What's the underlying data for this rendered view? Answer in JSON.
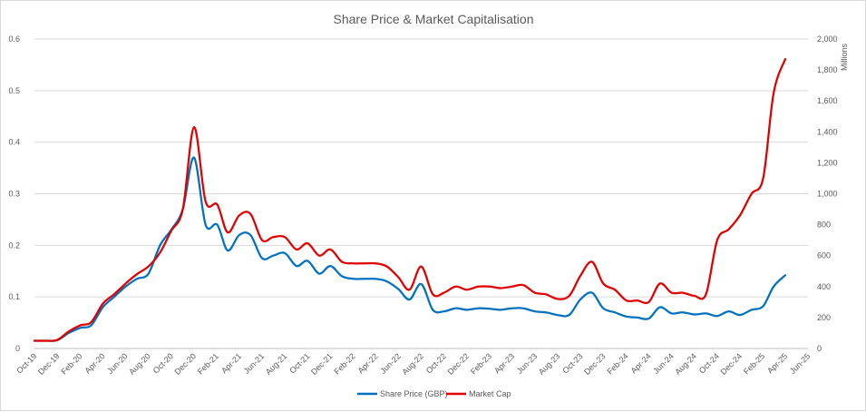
{
  "chart_data": {
    "type": "line",
    "title": "Share Price & Market Capitalisation",
    "y2_unit_label": "Millions",
    "x_tick_labels": [
      "Oct-19",
      "Dec-19",
      "Feb-20",
      "Apr-20",
      "Jun-20",
      "Aug-20",
      "Oct-20",
      "Dec-20",
      "Feb-21",
      "Apr-21",
      "Jun-21",
      "Aug-21",
      "Oct-21",
      "Dec-21",
      "Feb-22",
      "Apr-22",
      "Jun-22",
      "Aug-22",
      "Oct-22",
      "Dec-22",
      "Feb-23",
      "Apr-23",
      "Jun-23",
      "Aug-23",
      "Oct-23",
      "Dec-23",
      "Feb-24",
      "Apr-24",
      "Jun-24",
      "Aug-24",
      "Oct-24",
      "Dec-24",
      "Feb-25",
      "Apr-25",
      "Jun-25"
    ],
    "y_ticks": [
      "0",
      "0.1",
      "0.2",
      "0.3",
      "0.4",
      "0.5",
      "0.6"
    ],
    "y2_ticks": [
      "0",
      "200",
      "400",
      "600",
      "800",
      "1,000",
      "1,200",
      "1,400",
      "1,600",
      "1,800",
      "2,000"
    ],
    "ylim": [
      0,
      0.6
    ],
    "y2lim": [
      0,
      2000
    ],
    "grid": true,
    "legend_position": "bottom",
    "series": [
      {
        "name": "Share Price (GBP)",
        "axis": "left",
        "color": "#0070c0",
        "x": [
          "2019-10-01",
          "2019-11-01",
          "2019-12-01",
          "2020-01-01",
          "2020-02-01",
          "2020-03-01",
          "2020-04-01",
          "2020-05-01",
          "2020-06-01",
          "2020-07-01",
          "2020-08-01",
          "2020-09-01",
          "2020-10-01",
          "2020-11-01",
          "2020-12-01",
          "2021-01-01",
          "2021-02-01",
          "2021-03-01",
          "2021-04-01",
          "2021-05-01",
          "2021-06-01",
          "2021-07-01",
          "2021-08-01",
          "2021-09-01",
          "2021-10-01",
          "2021-11-01",
          "2021-12-01",
          "2022-01-01",
          "2022-02-01",
          "2022-03-01",
          "2022-04-01",
          "2022-05-01",
          "2022-06-01",
          "2022-07-01",
          "2022-08-01",
          "2022-09-01",
          "2022-10-01",
          "2022-11-01",
          "2022-12-01",
          "2023-01-01",
          "2023-02-01",
          "2023-03-01",
          "2023-04-01",
          "2023-05-01",
          "2023-06-01",
          "2023-07-01",
          "2023-08-01",
          "2023-09-01",
          "2023-10-01",
          "2023-11-01",
          "2023-12-01",
          "2024-01-01",
          "2024-02-01",
          "2024-03-01",
          "2024-04-01",
          "2024-05-01",
          "2024-06-01",
          "2024-07-01",
          "2024-08-01",
          "2024-09-01",
          "2024-10-01",
          "2024-11-01",
          "2024-12-01",
          "2025-01-01",
          "2025-02-01",
          "2025-03-01",
          "2025-04-01"
        ],
        "values": [
          0.015,
          0.015,
          0.016,
          0.03,
          0.04,
          0.045,
          0.08,
          0.1,
          0.12,
          0.135,
          0.145,
          0.2,
          0.23,
          0.27,
          0.37,
          0.24,
          0.24,
          0.19,
          0.22,
          0.22,
          0.175,
          0.18,
          0.185,
          0.16,
          0.17,
          0.145,
          0.16,
          0.14,
          0.135,
          0.135,
          0.135,
          0.13,
          0.115,
          0.095,
          0.125,
          0.075,
          0.072,
          0.078,
          0.075,
          0.078,
          0.077,
          0.075,
          0.078,
          0.078,
          0.072,
          0.07,
          0.065,
          0.065,
          0.095,
          0.108,
          0.078,
          0.07,
          0.062,
          0.06,
          0.058,
          0.08,
          0.068,
          0.07,
          0.066,
          0.068,
          0.063,
          0.072,
          0.065,
          0.075,
          0.082,
          0.12,
          0.142
        ]
      },
      {
        "name": "Market Cap",
        "axis": "right",
        "color": "#e00000",
        "x": [
          "2019-10-01",
          "2019-11-01",
          "2019-12-01",
          "2020-01-01",
          "2020-02-01",
          "2020-03-01",
          "2020-04-01",
          "2020-05-01",
          "2020-06-01",
          "2020-07-01",
          "2020-08-01",
          "2020-09-01",
          "2020-10-01",
          "2020-11-01",
          "2020-12-01",
          "2021-01-01",
          "2021-02-01",
          "2021-03-01",
          "2021-04-01",
          "2021-05-01",
          "2021-06-01",
          "2021-07-01",
          "2021-08-01",
          "2021-09-01",
          "2021-10-01",
          "2021-11-01",
          "2021-12-01",
          "2022-01-01",
          "2022-02-01",
          "2022-03-01",
          "2022-04-01",
          "2022-05-01",
          "2022-06-01",
          "2022-07-01",
          "2022-08-01",
          "2022-09-01",
          "2022-10-01",
          "2022-11-01",
          "2022-12-01",
          "2023-01-01",
          "2023-02-01",
          "2023-03-01",
          "2023-04-01",
          "2023-05-01",
          "2023-06-01",
          "2023-07-01",
          "2023-08-01",
          "2023-09-01",
          "2023-10-01",
          "2023-11-01",
          "2023-12-01",
          "2024-01-01",
          "2024-02-01",
          "2024-03-01",
          "2024-04-01",
          "2024-05-01",
          "2024-06-01",
          "2024-07-01",
          "2024-08-01",
          "2024-09-01",
          "2024-10-01",
          "2024-11-01",
          "2024-12-01",
          "2025-01-01",
          "2025-02-01",
          "2025-03-01",
          "2025-04-01"
        ],
        "values": [
          50,
          50,
          55,
          110,
          150,
          170,
          290,
          350,
          420,
          480,
          530,
          620,
          760,
          900,
          1430,
          950,
          930,
          750,
          860,
          870,
          700,
          720,
          720,
          640,
          680,
          600,
          640,
          560,
          550,
          550,
          550,
          530,
          460,
          380,
          530,
          350,
          360,
          400,
          380,
          400,
          400,
          390,
          400,
          410,
          360,
          350,
          320,
          340,
          470,
          560,
          420,
          380,
          310,
          310,
          300,
          420,
          360,
          360,
          340,
          350,
          700,
          770,
          860,
          1000,
          1100,
          1650,
          1870
        ]
      }
    ]
  }
}
